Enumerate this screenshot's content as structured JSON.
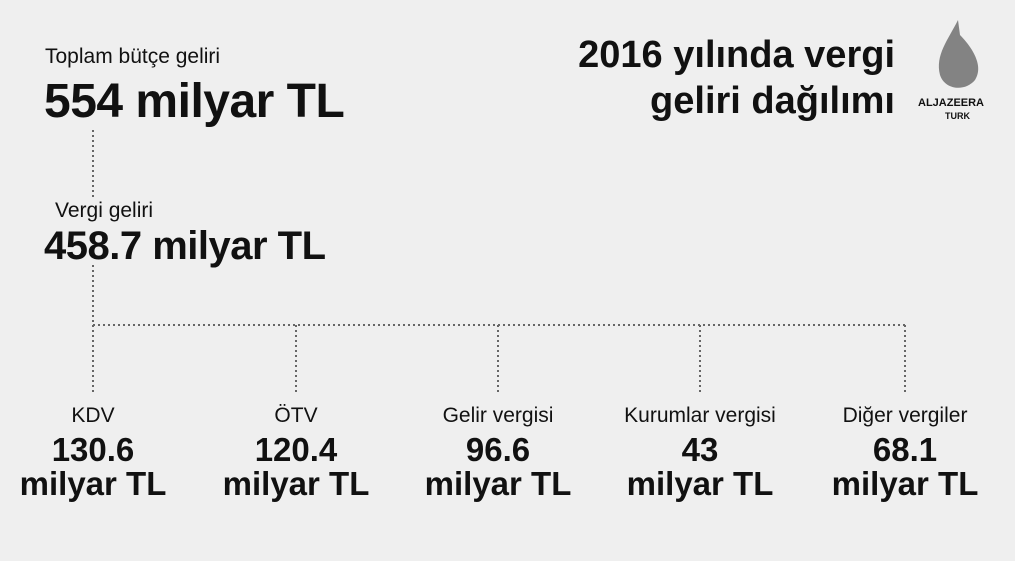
{
  "header": {
    "title_lines": [
      "2016 yılında vergi",
      "geliri dağılımı"
    ],
    "logo": {
      "name": "ALJAZEERA",
      "sub": "TURK"
    }
  },
  "total": {
    "label": "Toplam bütçe geliri",
    "value": "554 milyar TL"
  },
  "tax": {
    "label": "Vergi geliri",
    "value": "458.7 milyar TL"
  },
  "nodes": [
    {
      "label": "KDV",
      "amount": 130.6,
      "unit": "milyar TL"
    },
    {
      "label": "ÖTV",
      "amount": 120.4,
      "unit": "milyar TL"
    },
    {
      "label": "Gelir vergisi",
      "amount": 96.6,
      "unit": "milyar TL"
    },
    {
      "label": "Kurumlar vergisi",
      "amount": 43,
      "unit": "milyar TL"
    },
    {
      "label": "Diğer vergiler",
      "amount": 68.1,
      "unit": "milyar TL"
    }
  ]
}
